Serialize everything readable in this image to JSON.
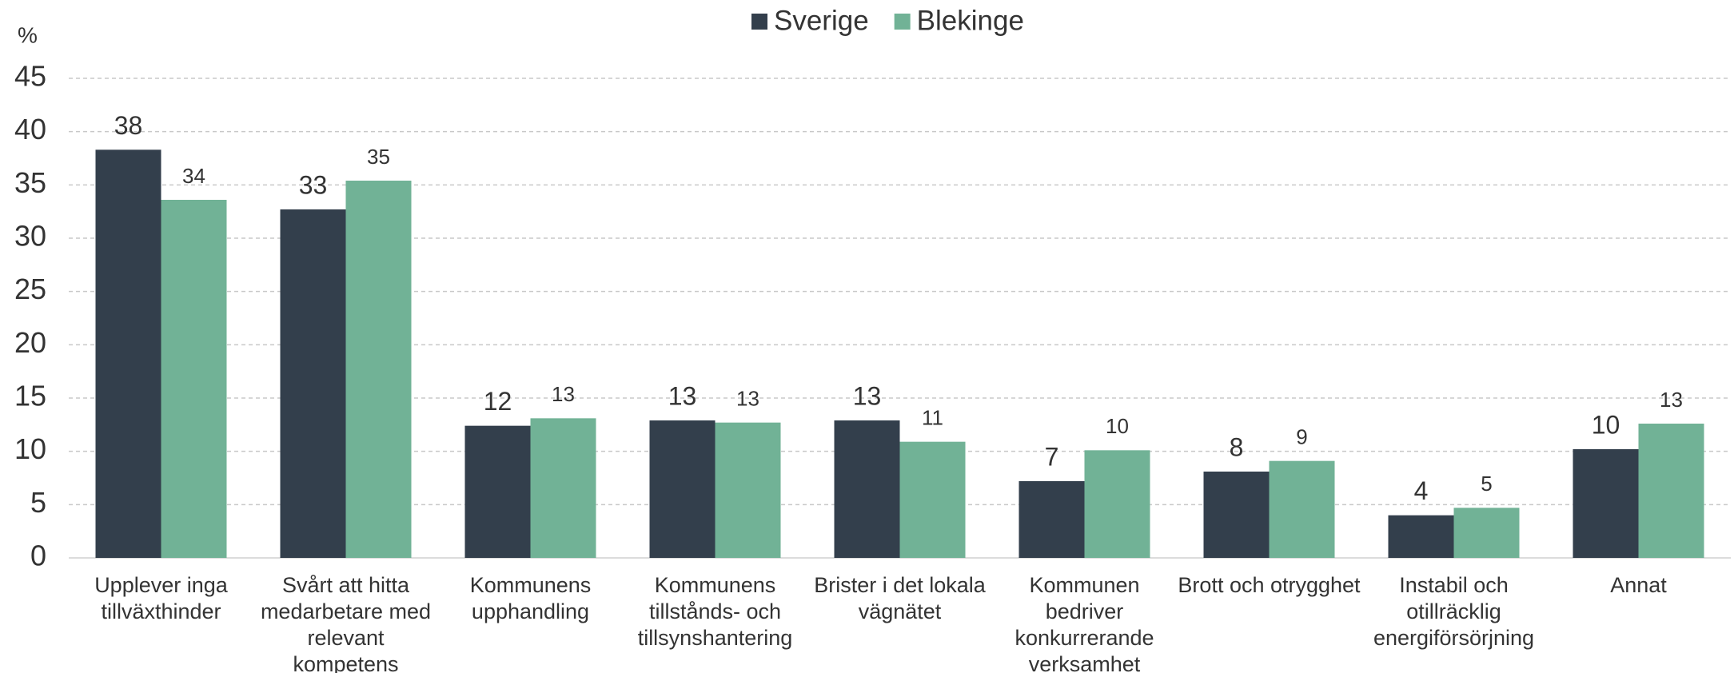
{
  "chart_data": {
    "type": "bar",
    "y_label": "%",
    "categories": [
      "Upplever inga tillväxthinder",
      "Svårt att hitta medarbetare med relevant kompetens",
      "Kommunens upphandling",
      "Kommunens tillstånds- och tillsynshantering",
      "Brister i det lokala vägnätet",
      "Kommunen bedriver konkurrerande verksamhet",
      "Brott och otrygghet",
      "Instabil och otillräcklig energiförsörjning",
      "Annat"
    ],
    "series": [
      {
        "name": "Sverige",
        "color": "#333f4c",
        "values": [
          38.3,
          32.7,
          12.4,
          12.9,
          12.9,
          7.2,
          8.1,
          4.0,
          10.2
        ],
        "value_labels": [
          "38",
          "33",
          "12",
          "13",
          "13",
          "7",
          "8",
          "4",
          "10"
        ]
      },
      {
        "name": "Blekinge",
        "color": "#71b296",
        "values": [
          33.6,
          35.4,
          13.1,
          12.7,
          10.9,
          10.1,
          9.1,
          4.7,
          12.6
        ],
        "value_labels": [
          "34",
          "35",
          "13",
          "13",
          "11",
          "10",
          "9",
          "5",
          "13"
        ]
      }
    ],
    "ylim": [
      0,
      45
    ],
    "yticks": [
      0,
      5,
      10,
      15,
      20,
      25,
      30,
      35,
      40,
      45
    ],
    "grid": true,
    "legend": "top"
  }
}
